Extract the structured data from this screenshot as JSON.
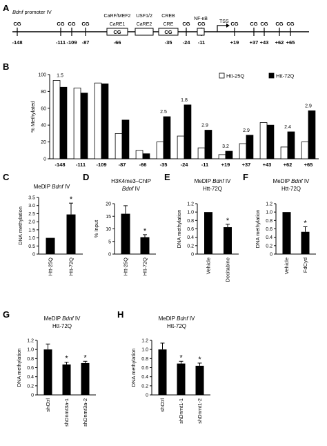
{
  "panel_letters": {
    "A": "A",
    "B": "B",
    "C": "C",
    "D": "D",
    "E": "E",
    "F": "F",
    "G": "G",
    "H": "H"
  },
  "promoter_map": {
    "title_italic": "Bdnf",
    "title_rest": " promoter IV",
    "cg_label": "CG",
    "tss_label": "TSS",
    "cg_positions": [
      "-148",
      "-111",
      "-109",
      "-87",
      "-66",
      "-35",
      "-24",
      "-11",
      "+19",
      "+37",
      "+43",
      "+62",
      "+65"
    ],
    "elements": [
      {
        "name": "CaRE1",
        "top_label": "CaRF/MEF2",
        "has_cg": true
      },
      {
        "name": "CaRE2",
        "top_label": "USF1/2",
        "has_cg": false
      },
      {
        "name": "CRE",
        "top_label": "CREB",
        "has_cg": true
      },
      {
        "name": "",
        "top_label": "NF-κB",
        "has_cg": false
      }
    ]
  },
  "chart_data": [
    {
      "panel": "B",
      "type": "bar",
      "title": "",
      "xlabel": "",
      "ylabel": "% Methylated",
      "ylim": [
        0,
        100
      ],
      "yticks": [
        0,
        20,
        40,
        60,
        80,
        100
      ],
      "categories": [
        "-148",
        "-111",
        "-109",
        "-87",
        "-66",
        "-35",
        "-24",
        "-11",
        "+19",
        "+37",
        "+43",
        "+62",
        "+65"
      ],
      "series": [
        {
          "name": "Htt-25Q",
          "color": "#ffffff",
          "values": [
            93,
            84,
            90,
            30,
            10,
            20,
            27,
            13,
            5,
            18,
            43,
            14,
            20
          ]
        },
        {
          "name": "Htt-72Q",
          "color": "#000000",
          "values": [
            85,
            78,
            89,
            46,
            6,
            50,
            64,
            34,
            9,
            28,
            40,
            32,
            57
          ]
        }
      ],
      "annotations": [
        "1.5",
        "",
        "",
        "",
        "",
        "2.5",
        "1.8",
        "2.9",
        "3.2",
        "2.9",
        "",
        "2.4",
        "2.9"
      ],
      "annotation_categories": [
        "-87",
        "",
        "",
        "",
        "",
        "-35",
        "-24",
        "-11",
        "+19",
        "+37",
        "",
        "+62",
        "+65"
      ],
      "legend": "top-right"
    },
    {
      "panel": "C",
      "type": "bar",
      "title": "MeDIP Bdnf IV",
      "ylabel": "DNA methylation",
      "ylim": [
        0,
        3.5
      ],
      "yticks": [
        "0",
        "0.5",
        "1.0",
        "1.5",
        "2.0",
        "2.5",
        "3.0",
        "3.5"
      ],
      "categories": [
        "Htt-25Q",
        "Htt-72Q"
      ],
      "values": [
        1.0,
        2.45
      ],
      "errors": [
        0,
        0.7
      ],
      "significant": [
        "",
        "*"
      ]
    },
    {
      "panel": "D",
      "type": "bar",
      "title": "H3K4me3–ChIP Bdnf IV",
      "ylabel": "% Input",
      "ylim": [
        0,
        20
      ],
      "yticks": [
        "0",
        "5",
        "10",
        "15",
        "20"
      ],
      "categories": [
        "Htt-25Q",
        "Htt-72Q"
      ],
      "values": [
        16,
        6.7
      ],
      "errors": [
        3.2,
        1.0
      ],
      "significant": [
        "",
        "*"
      ]
    },
    {
      "panel": "E",
      "type": "bar",
      "title": "MeDIP Bdnf IV Htt-72Q",
      "ylabel": "DNA methylation",
      "ylim": [
        0,
        1.2
      ],
      "yticks": [
        "0",
        "0.2",
        "0.4",
        "0.6",
        "0.8",
        "1.0",
        "1.2"
      ],
      "categories": [
        "Vehicle",
        "Decitabine"
      ],
      "values": [
        1.0,
        0.64
      ],
      "errors": [
        0,
        0.07
      ],
      "significant": [
        "",
        "*"
      ]
    },
    {
      "panel": "F",
      "type": "bar",
      "title": "MeDIP Bdnf IV Htt-72Q",
      "ylabel": "DNA methylation",
      "ylim": [
        0,
        1.2
      ],
      "yticks": [
        "0",
        "0.2",
        "0.4",
        "0.6",
        "0.8",
        "1.0",
        "1.2"
      ],
      "categories": [
        "Vehicle",
        "FdCyd"
      ],
      "values": [
        1.0,
        0.53
      ],
      "errors": [
        0,
        0.12
      ],
      "significant": [
        "",
        "*"
      ]
    },
    {
      "panel": "G",
      "type": "bar",
      "title": "MeDIP Bdnf IV Htt-72Q",
      "ylabel": "DNA methylation",
      "ylim": [
        0,
        1.2
      ],
      "yticks": [
        "0",
        "0.2",
        "0.4",
        "0.6",
        "0.8",
        "1.0",
        "1.2"
      ],
      "categories": [
        "shCtrl",
        "shDnmt3a-1",
        "shDnmt3a-2"
      ],
      "values": [
        1.0,
        0.67,
        0.7
      ],
      "errors": [
        0.12,
        0.05,
        0.04
      ],
      "significant": [
        "",
        "*",
        "*"
      ]
    },
    {
      "panel": "H",
      "type": "bar",
      "title": "MeDIP Bdnf IV Htt-72Q",
      "ylabel": "DNA methylation",
      "ylim": [
        0,
        1.2
      ],
      "yticks": [
        "0",
        "0.2",
        "0.4",
        "0.6",
        "0.8",
        "1.0",
        "1.2"
      ],
      "categories": [
        "shCtrl",
        "shDnmt1-1",
        "shDnmt1-2"
      ],
      "values": [
        1.0,
        0.69,
        0.64
      ],
      "errors": [
        0.14,
        0.05,
        0.06
      ],
      "significant": [
        "",
        "*",
        "*"
      ]
    }
  ]
}
